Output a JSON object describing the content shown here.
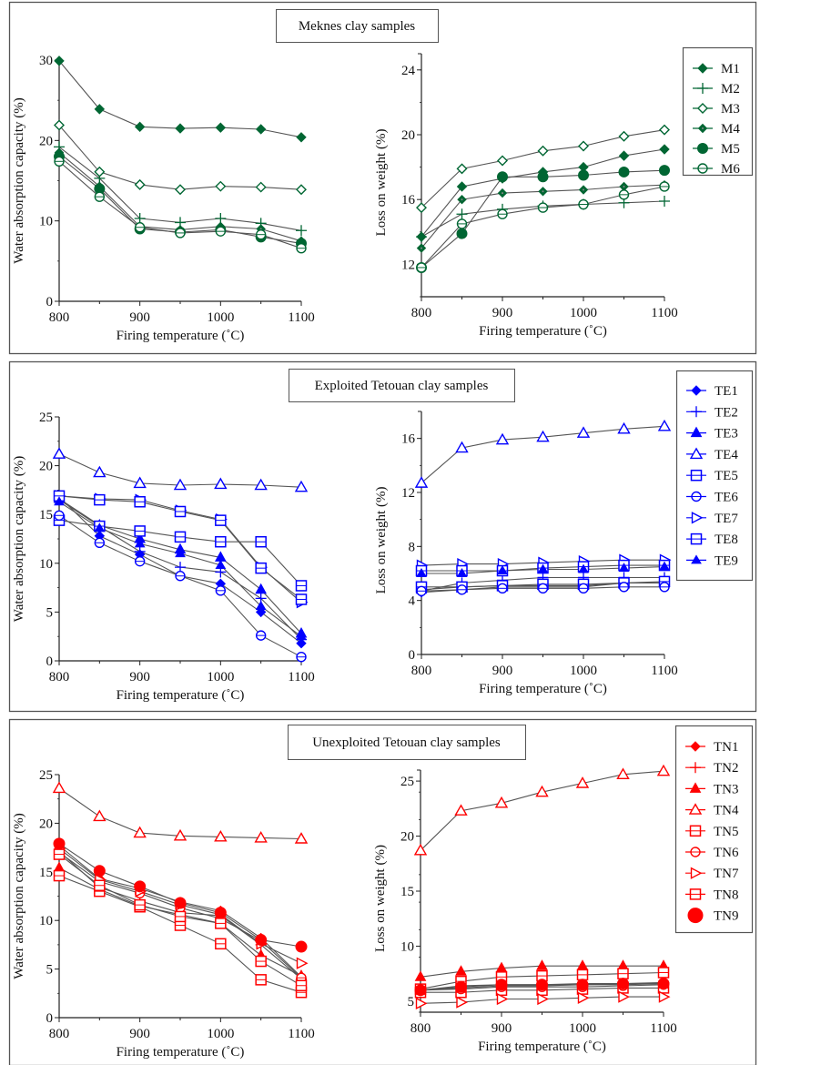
{
  "chart_data": [
    {
      "panel_title": "Meknes clay samples",
      "color": "#006633",
      "legend": {
        "placement": "top-right",
        "entries": [
          "M1",
          "M2",
          "M3",
          "M4",
          "M5",
          "M6"
        ]
      },
      "series_markers": {
        "M1": "diamond-filled",
        "M2": "plus",
        "M3": "diamond-open",
        "M4": "diamond-small",
        "M5": "circle-filled",
        "M6": "circle-open-bar"
      },
      "charts": [
        {
          "type": "line",
          "xlabel": "Firing temperature (˚C)",
          "ylabel": "Water absorption capacity (%)",
          "x": [
            800,
            850,
            900,
            950,
            1000,
            1050,
            1100
          ],
          "xlim": [
            800,
            1100
          ],
          "xticks": [
            800,
            900,
            1000,
            1100
          ],
          "ylim": [
            0,
            30
          ],
          "yticks": [
            0,
            10,
            20,
            30
          ],
          "series": [
            {
              "name": "M1",
              "values": [
                29.9,
                23.9,
                21.7,
                21.5,
                21.6,
                21.4,
                20.4
              ]
            },
            {
              "name": "M2",
              "values": [
                19.2,
                15.3,
                10.3,
                9.8,
                10.3,
                9.7,
                8.8
              ]
            },
            {
              "name": "M3",
              "values": [
                21.9,
                16.1,
                14.5,
                13.9,
                14.3,
                14.2,
                13.9
              ]
            },
            {
              "name": "M4",
              "values": [
                18.5,
                14.3,
                9.3,
                8.9,
                9.3,
                9.0,
                7.5
              ]
            },
            {
              "name": "M5",
              "values": [
                18.0,
                14.0,
                9.0,
                8.6,
                8.9,
                8.0,
                7.2
              ]
            },
            {
              "name": "M6",
              "values": [
                17.4,
                13.0,
                9.2,
                8.5,
                8.7,
                8.3,
                6.6
              ]
            }
          ]
        },
        {
          "type": "line",
          "xlabel": "Firing temperature (˚C)",
          "ylabel": "Loss on weight (%)",
          "x": [
            800,
            850,
            900,
            950,
            1000,
            1050,
            1100
          ],
          "xlim": [
            800,
            1100
          ],
          "xticks": [
            800,
            900,
            1000,
            1100
          ],
          "ylim": [
            10,
            25
          ],
          "yticks": [
            12,
            16,
            20,
            24
          ],
          "series": [
            {
              "name": "M1",
              "values": [
                13.7,
                16.8,
                17.3,
                17.7,
                18.0,
                18.7,
                19.1
              ]
            },
            {
              "name": "M2",
              "values": [
                13.7,
                15.1,
                15.4,
                15.6,
                15.7,
                15.8,
                15.9
              ]
            },
            {
              "name": "M3",
              "values": [
                15.5,
                17.9,
                18.4,
                19.0,
                19.3,
                19.9,
                20.3
              ]
            },
            {
              "name": "M4",
              "values": [
                13.0,
                16.0,
                16.4,
                16.5,
                16.6,
                16.8,
                16.9
              ]
            },
            {
              "name": "M5",
              "values": [
                11.8,
                13.9,
                17.4,
                17.4,
                17.5,
                17.7,
                17.8
              ]
            },
            {
              "name": "M6",
              "values": [
                11.8,
                14.5,
                15.1,
                15.5,
                15.7,
                16.3,
                16.8
              ]
            }
          ]
        }
      ]
    },
    {
      "panel_title": "Exploited Tetouan clay samples",
      "color": "#0000ff",
      "legend": {
        "placement": "top-right",
        "entries": [
          "TE1",
          "TE2",
          "TE3",
          "TE4",
          "TE5",
          "TE6",
          "TE7",
          "TE8",
          "TE9"
        ]
      },
      "series_markers": {
        "TE1": "diamond-filled",
        "TE2": "plus",
        "TE3": "triangle-filled",
        "TE4": "triangle-open",
        "TE5": "square-open-bar",
        "TE6": "circle-open-bar",
        "TE7": "triangle-right-open",
        "TE8": "square-open-bar",
        "TE9": "triangle-filled-small"
      },
      "charts": [
        {
          "type": "line",
          "xlabel": "Firing temperature (˚C)",
          "ylabel": "Water absorption capacity (%)",
          "x": [
            800,
            850,
            900,
            950,
            1000,
            1050,
            1100
          ],
          "xlim": [
            800,
            1100
          ],
          "xticks": [
            800,
            900,
            1000,
            1100
          ],
          "ylim": [
            0,
            25
          ],
          "yticks": [
            0,
            5,
            10,
            15,
            20,
            25
          ],
          "series": [
            {
              "name": "TE1",
              "values": [
                16.8,
                12.8,
                10.9,
                8.7,
                7.9,
                5.0,
                1.8
              ]
            },
            {
              "name": "TE2",
              "values": [
                16.5,
                13.8,
                11.2,
                9.6,
                9.1,
                6.4,
                2.2
              ]
            },
            {
              "name": "TE3",
              "values": [
                16.6,
                13.9,
                12.5,
                11.4,
                10.6,
                7.3,
                2.8
              ]
            },
            {
              "name": "TE4",
              "values": [
                21.2,
                19.3,
                18.2,
                18.0,
                18.1,
                18.0,
                17.8
              ]
            },
            {
              "name": "TE5",
              "values": [
                14.4,
                13.8,
                13.3,
                12.7,
                12.2,
                12.2,
                7.7
              ]
            },
            {
              "name": "TE6",
              "values": [
                14.9,
                12.1,
                10.2,
                8.7,
                7.2,
                2.6,
                0.4
              ]
            },
            {
              "name": "TE7",
              "values": [
                16.9,
                16.6,
                16.5,
                15.4,
                14.5,
                9.6,
                6.0
              ]
            },
            {
              "name": "TE8",
              "values": [
                16.9,
                16.5,
                16.3,
                15.3,
                14.4,
                9.5,
                6.3
              ]
            },
            {
              "name": "TE9",
              "values": [
                16.3,
                13.6,
                12.0,
                11.0,
                9.8,
                5.6,
                2.5
              ]
            }
          ]
        },
        {
          "type": "line",
          "xlabel": "Firing temperature (˚C)",
          "ylabel": "Loss on weight (%)",
          "x": [
            800,
            850,
            900,
            950,
            1000,
            1050,
            1100
          ],
          "xlim": [
            800,
            1100
          ],
          "xticks": [
            800,
            900,
            1000,
            1100
          ],
          "ylim": [
            0,
            18
          ],
          "yticks": [
            0,
            4,
            8,
            12,
            16
          ],
          "series": [
            {
              "name": "TE1",
              "values": [
                4.6,
                4.8,
                5.0,
                5.0,
                5.0,
                5.3,
                5.3
              ]
            },
            {
              "name": "TE2",
              "values": [
                4.7,
                5.3,
                5.5,
                5.7,
                5.7,
                5.7,
                5.7
              ]
            },
            {
              "name": "TE3",
              "values": [
                4.8,
                5.0,
                5.1,
                5.1,
                5.1,
                5.3,
                5.3
              ]
            },
            {
              "name": "TE4",
              "values": [
                12.7,
                15.3,
                15.9,
                16.1,
                16.4,
                16.7,
                16.9
              ]
            },
            {
              "name": "TE5",
              "values": [
                5.0,
                5.0,
                5.1,
                5.2,
                5.2,
                5.3,
                5.4
              ]
            },
            {
              "name": "TE6",
              "values": [
                4.7,
                4.8,
                4.9,
                4.9,
                4.9,
                5.0,
                5.0
              ]
            },
            {
              "name": "TE7",
              "values": [
                6.6,
                6.7,
                6.7,
                6.8,
                6.9,
                7.0,
                7.0
              ]
            },
            {
              "name": "TE8",
              "values": [
                6.2,
                6.2,
                6.2,
                6.4,
                6.5,
                6.6,
                6.6
              ]
            },
            {
              "name": "TE9",
              "values": [
                6.0,
                6.0,
                6.2,
                6.3,
                6.3,
                6.4,
                6.5
              ]
            }
          ]
        }
      ]
    },
    {
      "panel_title": "Unexploited Tetouan clay samples",
      "color": "#ff0000",
      "legend": {
        "placement": "top-right",
        "entries": [
          "TN1",
          "TN2",
          "TN3",
          "TN4",
          "TN5",
          "TN6",
          "TN7",
          "TN8",
          "TN9"
        ]
      },
      "series_markers": {
        "TN1": "diamond-filled",
        "TN2": "plus",
        "TN3": "triangle-filled",
        "TN4": "triangle-open",
        "TN5": "square-open-bar",
        "TN6": "circle-open-bar",
        "TN7": "triangle-right-open",
        "TN8": "square-open-bar",
        "TN9": "circle-filled-large"
      },
      "charts": [
        {
          "type": "line",
          "xlabel": "Firing temperature (˚C)",
          "ylabel": "Water absorption capacity (%)",
          "x": [
            800,
            850,
            900,
            950,
            1000,
            1050,
            1100
          ],
          "xlim": [
            800,
            1100
          ],
          "xticks": [
            800,
            900,
            1000,
            1100
          ],
          "ylim": [
            0,
            25
          ],
          "yticks": [
            0,
            5,
            10,
            15,
            20,
            25
          ],
          "series": [
            {
              "name": "TN1",
              "values": [
                17.7,
                14.3,
                13.3,
                11.9,
                11.0,
                8.2,
                4.2
              ]
            },
            {
              "name": "TN2",
              "values": [
                17.1,
                13.4,
                12.0,
                10.8,
                10.5,
                7.5,
                4.0
              ]
            },
            {
              "name": "TN3",
              "values": [
                15.4,
                13.2,
                11.5,
                10.6,
                9.7,
                6.4,
                4.3
              ]
            },
            {
              "name": "TN4",
              "values": [
                23.6,
                20.7,
                19.0,
                18.7,
                18.6,
                18.5,
                18.4
              ]
            },
            {
              "name": "TN5",
              "values": [
                14.6,
                13.0,
                11.4,
                9.5,
                7.6,
                3.9,
                2.6
              ]
            },
            {
              "name": "TN6",
              "values": [
                17.0,
                14.0,
                12.8,
                11.3,
                10.2,
                7.9,
                4.1
              ]
            },
            {
              "name": "TN7",
              "values": [
                17.4,
                14.2,
                13.0,
                11.6,
                10.6,
                7.6,
                5.6
              ]
            },
            {
              "name": "TN8",
              "values": [
                16.8,
                13.6,
                11.6,
                10.4,
                9.7,
                5.8,
                3.3
              ]
            },
            {
              "name": "TN9",
              "values": [
                17.9,
                15.1,
                13.5,
                11.8,
                10.8,
                8.0,
                7.3
              ]
            }
          ]
        },
        {
          "type": "line",
          "xlabel": "Firing temperature (˚C)",
          "ylabel": "Loss on weight (%)",
          "x": [
            800,
            850,
            900,
            950,
            1000,
            1050,
            1100
          ],
          "xlim": [
            800,
            1100
          ],
          "xticks": [
            800,
            900,
            1000,
            1100
          ],
          "ylim": [
            4,
            26
          ],
          "yticks": [
            5,
            10,
            15,
            20,
            25
          ],
          "series": [
            {
              "name": "TN1",
              "values": [
                6.0,
                6.4,
                6.5,
                6.5,
                6.6,
                6.6,
                6.7
              ]
            },
            {
              "name": "TN2",
              "values": [
                6.0,
                6.2,
                6.4,
                6.4,
                6.5,
                6.5,
                6.6
              ]
            },
            {
              "name": "TN3",
              "values": [
                7.2,
                7.7,
                8.0,
                8.2,
                8.2,
                8.2,
                8.2
              ]
            },
            {
              "name": "TN4",
              "values": [
                18.7,
                22.3,
                23.0,
                24.0,
                24.8,
                25.6,
                25.9
              ]
            },
            {
              "name": "TN5",
              "values": [
                5.8,
                5.8,
                6.0,
                6.0,
                6.1,
                6.2,
                6.2
              ]
            },
            {
              "name": "TN6",
              "values": [
                6.0,
                6.1,
                6.3,
                6.3,
                6.3,
                6.4,
                6.5
              ]
            },
            {
              "name": "TN7",
              "values": [
                4.8,
                4.9,
                5.2,
                5.2,
                5.3,
                5.4,
                5.4
              ]
            },
            {
              "name": "TN8",
              "values": [
                6.1,
                6.8,
                7.2,
                7.3,
                7.4,
                7.5,
                7.6
              ]
            },
            {
              "name": "TN9",
              "values": [
                6.0,
                6.3,
                6.5,
                6.5,
                6.5,
                6.6,
                6.6
              ]
            }
          ]
        }
      ]
    }
  ]
}
